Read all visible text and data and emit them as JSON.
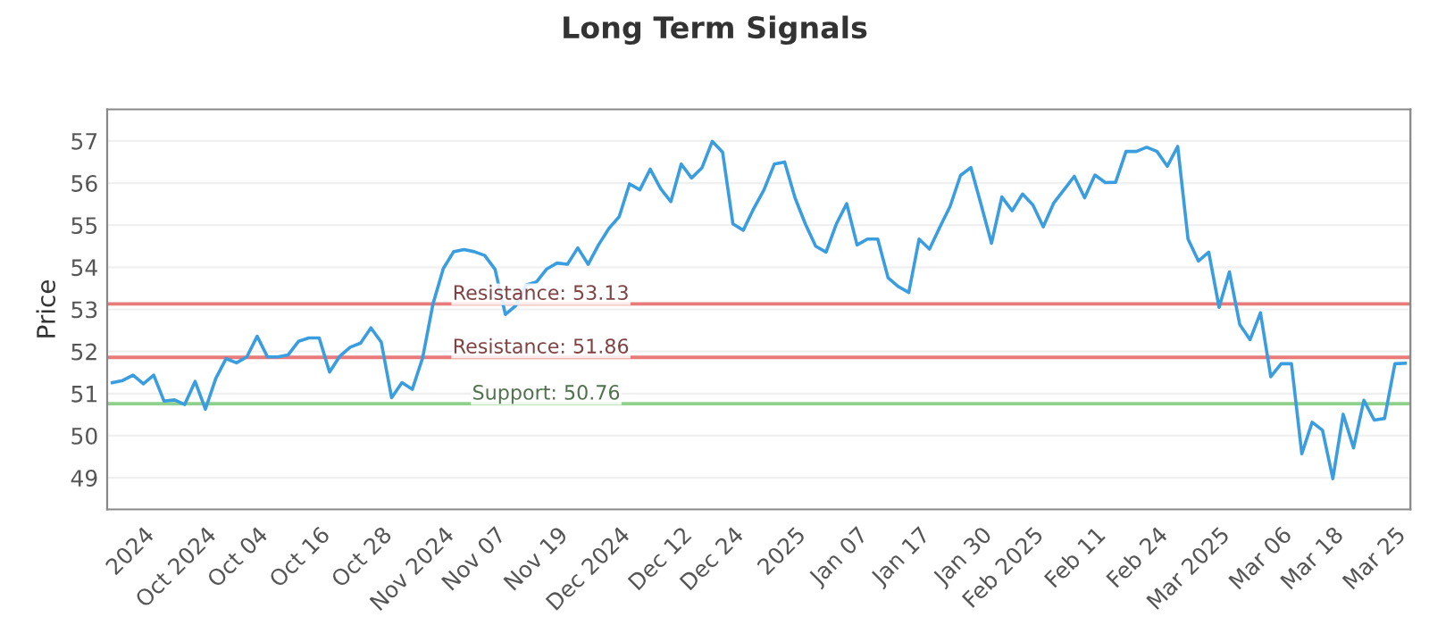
{
  "chart_data": {
    "type": "line",
    "title": "Long Term Signals",
    "ylabel": "Price",
    "categories": [
      null,
      null,
      null,
      "2024",
      null,
      null,
      null,
      null,
      null,
      "Oct 2024",
      null,
      null,
      null,
      null,
      "Oct 04",
      null,
      null,
      null,
      null,
      null,
      "Oct 16",
      null,
      null,
      null,
      null,
      null,
      "Oct 28",
      null,
      null,
      null,
      null,
      null,
      "Nov 2024",
      null,
      null,
      null,
      null,
      "Nov 07",
      null,
      null,
      null,
      null,
      null,
      "Nov 19",
      null,
      null,
      null,
      null,
      null,
      "Dec 2024",
      null,
      null,
      null,
      null,
      null,
      "Dec 12",
      null,
      null,
      null,
      null,
      "Dec 24",
      null,
      null,
      null,
      null,
      null,
      "2025",
      null,
      null,
      null,
      null,
      null,
      "Jan 07",
      null,
      null,
      null,
      null,
      null,
      "Jan 17",
      null,
      null,
      null,
      null,
      null,
      "Jan 30",
      null,
      null,
      null,
      null,
      "Feb 2025",
      null,
      null,
      null,
      null,
      null,
      "Feb 11",
      null,
      null,
      null,
      null,
      null,
      "Feb 24",
      null,
      null,
      null,
      null,
      null,
      "Mar 2025",
      null,
      null,
      null,
      null,
      null,
      "Mar 06",
      null,
      null,
      null,
      null,
      "Mar 18",
      null,
      null,
      null,
      null,
      null,
      "Mar 25",
      null
    ],
    "series": [
      {
        "color": "#3a9de0",
        "values": [
          51.26,
          51.31,
          51.44,
          51.23,
          51.44,
          50.82,
          50.85,
          50.74,
          51.29,
          50.63,
          51.36,
          51.83,
          51.73,
          51.87,
          52.36,
          51.87,
          51.87,
          51.92,
          52.24,
          52.32,
          52.32,
          51.51,
          51.89,
          52.1,
          52.2,
          52.56,
          52.22,
          50.9,
          51.26,
          51.1,
          51.85,
          53.13,
          53.97,
          54.37,
          54.42,
          54.37,
          54.28,
          53.95,
          52.88,
          53.09,
          53.58,
          53.65,
          53.96,
          54.1,
          54.07,
          54.46,
          54.07,
          54.53,
          54.92,
          55.2,
          55.98,
          55.84,
          56.33,
          55.87,
          55.56,
          56.45,
          56.12,
          56.36,
          56.99,
          56.73,
          55.03,
          54.88,
          55.39,
          55.84,
          56.45,
          56.5,
          55.65,
          55.03,
          54.5,
          54.36,
          55.03,
          55.51,
          54.53,
          54.67,
          54.67,
          53.75,
          53.54,
          53.4,
          54.67,
          54.43,
          54.95,
          55.45,
          56.18,
          56.37,
          55.48,
          54.57,
          55.67,
          55.34,
          55.74,
          55.48,
          54.96,
          55.52,
          55.84,
          56.16,
          55.65,
          56.19,
          56.01,
          56.02,
          56.75,
          56.75,
          56.85,
          56.75,
          56.4,
          56.87,
          54.67,
          54.15,
          54.36,
          53.05,
          53.89,
          52.64,
          52.28,
          52.92,
          51.4,
          51.71,
          51.71,
          49.57,
          50.32,
          50.13,
          48.98,
          50.51,
          49.71,
          50.84,
          50.37,
          50.41,
          51.71,
          51.72
        ]
      }
    ],
    "ylim": [
      48.25,
      57.75
    ],
    "yticks": [
      49,
      50,
      51,
      52,
      53,
      54,
      55,
      56,
      57
    ],
    "grid": "y",
    "marker": "none",
    "line_style": "solid",
    "ref_lines": [
      {
        "axis": "y",
        "value": 53.13,
        "label": "Resistance: 53.13",
        "color": "#e87a7a"
      },
      {
        "axis": "y",
        "value": 51.86,
        "label": "Resistance: 51.86",
        "color": "#e87a7a"
      },
      {
        "axis": "y",
        "value": 50.76,
        "label": "Support: 50.76",
        "color": "#8fd08a"
      }
    ]
  }
}
